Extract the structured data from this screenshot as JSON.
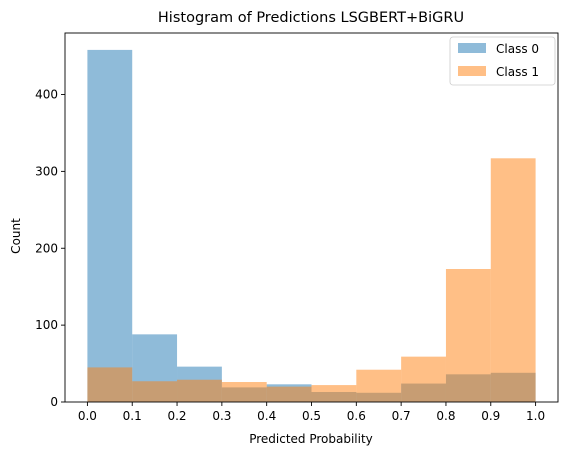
{
  "chart_data": {
    "type": "histogram",
    "title": "Histogram of Predictions LSGBERT+BiGRU",
    "xlabel": "Predicted Probability",
    "ylabel": "Count",
    "xlim": [
      -0.05,
      1.05
    ],
    "ylim": [
      0,
      480
    ],
    "x_ticks": [
      "0.0",
      "0.1",
      "0.2",
      "0.3",
      "0.4",
      "0.5",
      "0.6",
      "0.7",
      "0.8",
      "0.9",
      "1.0"
    ],
    "y_ticks": [
      "0",
      "100",
      "200",
      "300",
      "400"
    ],
    "bin_edges": [
      0.0,
      0.1,
      0.2,
      0.3,
      0.4,
      0.5,
      0.6,
      0.7,
      0.8,
      0.9,
      1.0
    ],
    "legend_position": "top-right",
    "alpha": 0.5,
    "series": [
      {
        "name": "Class 0",
        "color": "#1f77b4",
        "values": [
          458,
          88,
          46,
          19,
          23,
          13,
          12,
          24,
          36,
          38
        ]
      },
      {
        "name": "Class 1",
        "color": "#ff7f0e",
        "values": [
          45,
          27,
          29,
          26,
          20,
          22,
          42,
          59,
          173,
          317
        ]
      }
    ]
  }
}
